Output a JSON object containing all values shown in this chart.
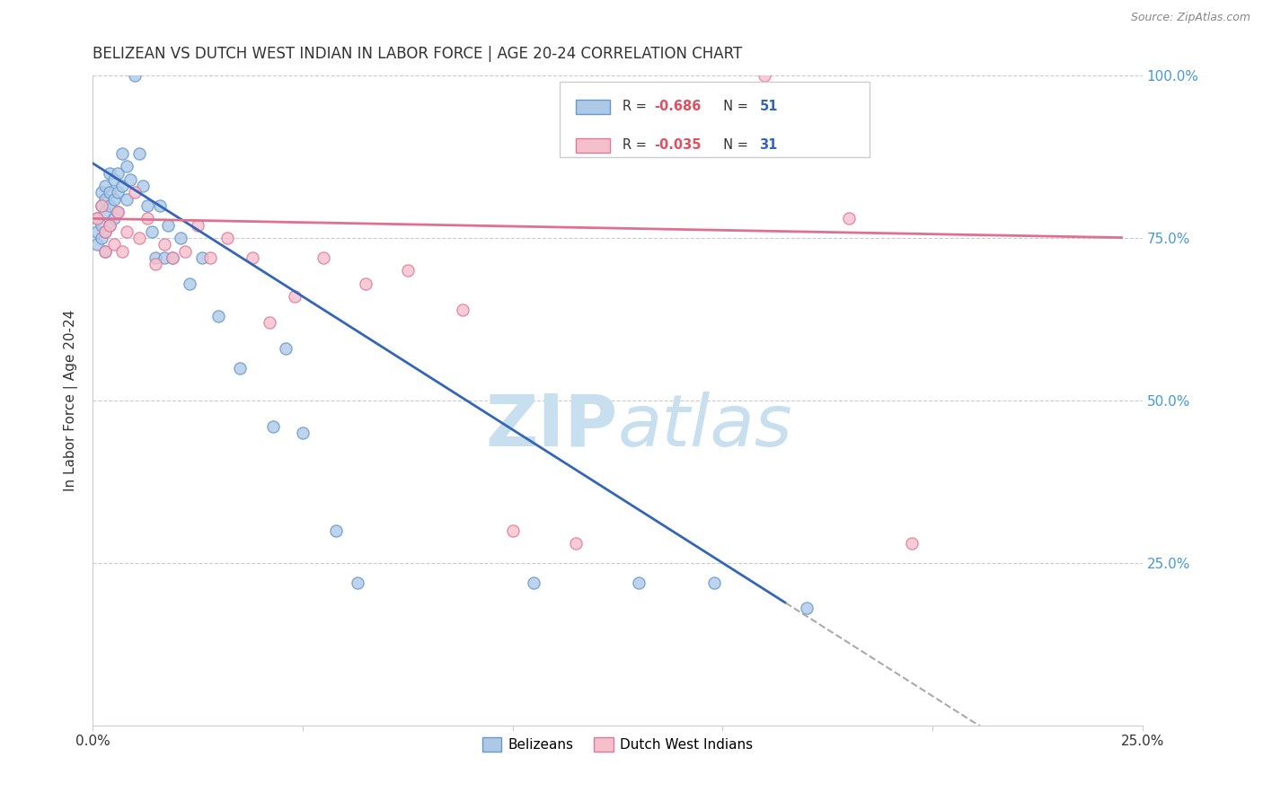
{
  "title": "BELIZEAN VS DUTCH WEST INDIAN IN LABOR FORCE | AGE 20-24 CORRELATION CHART",
  "source": "Source: ZipAtlas.com",
  "ylabel": "In Labor Force | Age 20-24",
  "y_ticks": [
    0.0,
    0.25,
    0.5,
    0.75,
    1.0
  ],
  "y_tick_labels_right": [
    "",
    "25.0%",
    "50.0%",
    "75.0%",
    "100.0%"
  ],
  "xlim": [
    0.0,
    0.25
  ],
  "ylim": [
    0.0,
    1.0
  ],
  "blue_color": "#aec9e8",
  "blue_edge_color": "#6699cc",
  "pink_color": "#f5c0cc",
  "pink_edge_color": "#e0789a",
  "blue_line_color": "#3366bb",
  "pink_line_color": "#e07090",
  "blue_scatter_x": [
    0.001,
    0.001,
    0.001,
    0.002,
    0.002,
    0.002,
    0.002,
    0.003,
    0.003,
    0.003,
    0.003,
    0.003,
    0.004,
    0.004,
    0.004,
    0.004,
    0.005,
    0.005,
    0.005,
    0.006,
    0.006,
    0.006,
    0.007,
    0.007,
    0.008,
    0.008,
    0.009,
    0.01,
    0.011,
    0.012,
    0.013,
    0.014,
    0.015,
    0.016,
    0.017,
    0.018,
    0.019,
    0.021,
    0.023,
    0.026,
    0.03,
    0.035,
    0.043,
    0.046,
    0.05,
    0.058,
    0.063,
    0.105,
    0.13,
    0.148,
    0.17
  ],
  "blue_scatter_y": [
    0.78,
    0.76,
    0.74,
    0.82,
    0.8,
    0.77,
    0.75,
    0.83,
    0.81,
    0.79,
    0.76,
    0.73,
    0.85,
    0.82,
    0.8,
    0.77,
    0.84,
    0.81,
    0.78,
    0.85,
    0.82,
    0.79,
    0.88,
    0.83,
    0.86,
    0.81,
    0.84,
    1.0,
    0.88,
    0.83,
    0.8,
    0.76,
    0.72,
    0.8,
    0.72,
    0.77,
    0.72,
    0.75,
    0.68,
    0.72,
    0.63,
    0.55,
    0.46,
    0.58,
    0.45,
    0.3,
    0.22,
    0.22,
    0.22,
    0.22,
    0.18
  ],
  "pink_scatter_x": [
    0.001,
    0.002,
    0.003,
    0.003,
    0.004,
    0.005,
    0.006,
    0.007,
    0.008,
    0.01,
    0.011,
    0.013,
    0.015,
    0.017,
    0.019,
    0.022,
    0.025,
    0.028,
    0.032,
    0.038,
    0.042,
    0.048,
    0.055,
    0.065,
    0.075,
    0.088,
    0.1,
    0.115,
    0.16,
    0.18,
    0.195
  ],
  "pink_scatter_y": [
    0.78,
    0.8,
    0.76,
    0.73,
    0.77,
    0.74,
    0.79,
    0.73,
    0.76,
    0.82,
    0.75,
    0.78,
    0.71,
    0.74,
    0.72,
    0.73,
    0.77,
    0.72,
    0.75,
    0.72,
    0.62,
    0.66,
    0.72,
    0.68,
    0.7,
    0.64,
    0.3,
    0.28,
    1.0,
    0.78,
    0.28
  ],
  "blue_line_intercept": 0.865,
  "blue_line_slope": -4.1,
  "blue_line_solid_end": 0.165,
  "blue_line_dash_end": 0.245,
  "pink_line_intercept": 0.78,
  "pink_line_slope": -0.12,
  "pink_line_end": 0.245,
  "grid_color": "#cccccc",
  "grid_linestyle": "--",
  "background_color": "#ffffff",
  "right_axis_color": "#4499dd",
  "marker_size": 90,
  "legend_R_blue": "R = -0.686",
  "legend_N_blue": "N = 51",
  "legend_R_pink": "R = -0.035",
  "legend_N_pink": "N = 31",
  "legend_label_blue": "Belizeans",
  "legend_label_pink": "Dutch West Indians",
  "watermark_zip_color": "#c8dff0",
  "watermark_atlas_color": "#c8dff0"
}
